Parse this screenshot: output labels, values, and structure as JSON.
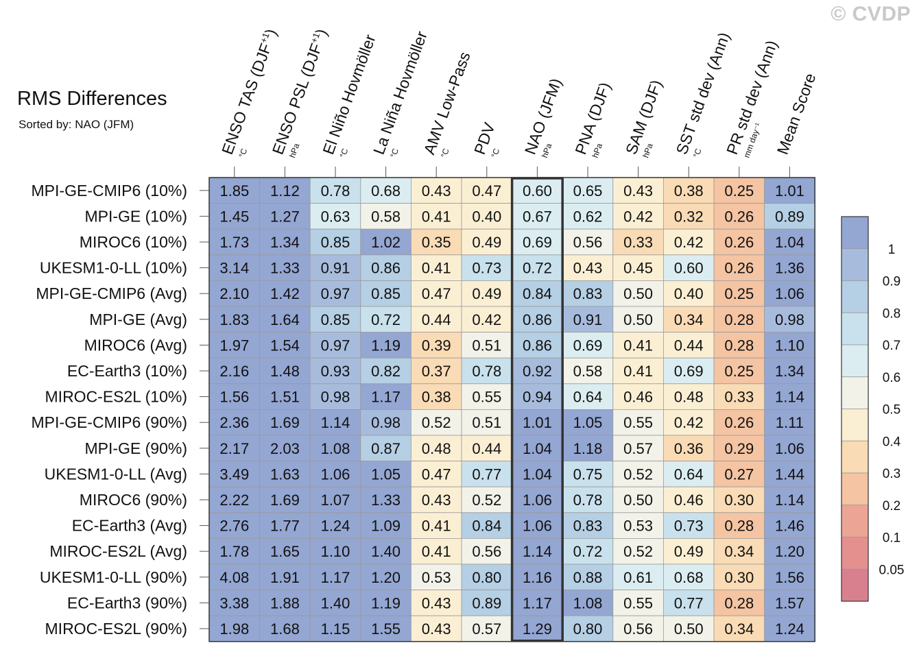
{
  "title": "RMS Differences",
  "subtitle": "Sorted by: NAO (JFM)",
  "watermark": "© CVDP",
  "chart_data": {
    "type": "heatmap",
    "columns": [
      {
        "label": "ENSO TAS (DJF",
        "sup": "+1",
        "tail": ")",
        "unit": "°C"
      },
      {
        "label": "ENSO PSL (DJF",
        "sup": "+1",
        "tail": ")",
        "unit": "hPa"
      },
      {
        "label": "El Niño Hovmöller",
        "sup": "",
        "tail": "",
        "unit": "°C"
      },
      {
        "label": "La Niña Hovmöller",
        "sup": "",
        "tail": "",
        "unit": "°C"
      },
      {
        "label": "AMV Low-Pass",
        "sup": "",
        "tail": "",
        "unit": "°C"
      },
      {
        "label": "PDV",
        "sup": "",
        "tail": "",
        "unit": "°C"
      },
      {
        "label": "NAO (JFM)",
        "sup": "",
        "tail": "",
        "unit": "hPa"
      },
      {
        "label": "PNA (DJF)",
        "sup": "",
        "tail": "",
        "unit": "hPa"
      },
      {
        "label": "SAM (DJF)",
        "sup": "",
        "tail": "",
        "unit": "hPa"
      },
      {
        "label": "SST std dev (Ann)",
        "sup": "",
        "tail": "",
        "unit": "°C"
      },
      {
        "label": "PR std dev (Ann)",
        "sup": "",
        "tail": "",
        "unit": "mm day⁻¹"
      },
      {
        "label": "Mean Score",
        "sup": "",
        "tail": "",
        "unit": ""
      }
    ],
    "rows": [
      "MPI-GE-CMIP6 (10%)",
      "MPI-GE (10%)",
      "MIROC6 (10%)",
      "UKESM1-0-LL (10%)",
      "MPI-GE-CMIP6 (Avg)",
      "MPI-GE (Avg)",
      "MIROC6 (Avg)",
      "EC-Earth3 (10%)",
      "MIROC-ES2L (10%)",
      "MPI-GE-CMIP6 (90%)",
      "MPI-GE (90%)",
      "UKESM1-0-LL (Avg)",
      "MIROC6 (90%)",
      "EC-Earth3 (Avg)",
      "MIROC-ES2L (Avg)",
      "UKESM1-0-LL (90%)",
      "EC-Earth3 (90%)",
      "MIROC-ES2L (90%)"
    ],
    "values": [
      [
        "1.85",
        "1.12",
        "0.78",
        "0.68",
        "0.43",
        "0.47",
        "0.60",
        "0.65",
        "0.43",
        "0.38",
        "0.25",
        "1.01"
      ],
      [
        "1.45",
        "1.27",
        "0.63",
        "0.58",
        "0.41",
        "0.40",
        "0.67",
        "0.62",
        "0.42",
        "0.32",
        "0.26",
        "0.89"
      ],
      [
        "1.73",
        "1.34",
        "0.85",
        "1.02",
        "0.35",
        "0.49",
        "0.69",
        "0.56",
        "0.33",
        "0.42",
        "0.26",
        "1.04"
      ],
      [
        "3.14",
        "1.33",
        "0.91",
        "0.86",
        "0.41",
        "0.73",
        "0.72",
        "0.43",
        "0.45",
        "0.60",
        "0.26",
        "1.36"
      ],
      [
        "2.10",
        "1.42",
        "0.97",
        "0.85",
        "0.47",
        "0.49",
        "0.84",
        "0.83",
        "0.50",
        "0.40",
        "0.25",
        "1.06"
      ],
      [
        "1.83",
        "1.64",
        "0.85",
        "0.72",
        "0.44",
        "0.42",
        "0.86",
        "0.91",
        "0.50",
        "0.34",
        "0.28",
        "0.98"
      ],
      [
        "1.97",
        "1.54",
        "0.97",
        "1.19",
        "0.39",
        "0.51",
        "0.86",
        "0.69",
        "0.41",
        "0.44",
        "0.28",
        "1.10"
      ],
      [
        "2.16",
        "1.48",
        "0.93",
        "0.82",
        "0.37",
        "0.78",
        "0.92",
        "0.58",
        "0.41",
        "0.69",
        "0.25",
        "1.34"
      ],
      [
        "1.56",
        "1.51",
        "0.98",
        "1.17",
        "0.38",
        "0.55",
        "0.94",
        "0.64",
        "0.46",
        "0.48",
        "0.33",
        "1.14"
      ],
      [
        "2.36",
        "1.69",
        "1.14",
        "0.98",
        "0.52",
        "0.51",
        "1.01",
        "1.05",
        "0.55",
        "0.42",
        "0.26",
        "1.11"
      ],
      [
        "2.17",
        "2.03",
        "1.08",
        "0.87",
        "0.48",
        "0.44",
        "1.04",
        "1.18",
        "0.57",
        "0.36",
        "0.29",
        "1.06"
      ],
      [
        "3.49",
        "1.63",
        "1.06",
        "1.05",
        "0.47",
        "0.77",
        "1.04",
        "0.75",
        "0.52",
        "0.64",
        "0.27",
        "1.44"
      ],
      [
        "2.22",
        "1.69",
        "1.07",
        "1.33",
        "0.43",
        "0.52",
        "1.06",
        "0.78",
        "0.50",
        "0.46",
        "0.30",
        "1.14"
      ],
      [
        "2.76",
        "1.77",
        "1.24",
        "1.09",
        "0.41",
        "0.84",
        "1.06",
        "0.83",
        "0.53",
        "0.73",
        "0.28",
        "1.46"
      ],
      [
        "1.78",
        "1.65",
        "1.10",
        "1.40",
        "0.41",
        "0.56",
        "1.14",
        "0.72",
        "0.52",
        "0.49",
        "0.34",
        "1.20"
      ],
      [
        "4.08",
        "1.91",
        "1.17",
        "1.20",
        "0.53",
        "0.80",
        "1.16",
        "0.88",
        "0.61",
        "0.68",
        "0.30",
        "1.56"
      ],
      [
        "3.38",
        "1.88",
        "1.40",
        "1.19",
        "0.43",
        "0.89",
        "1.17",
        "1.08",
        "0.55",
        "0.77",
        "0.28",
        "1.57"
      ],
      [
        "1.98",
        "1.68",
        "1.15",
        "1.55",
        "0.43",
        "0.57",
        "1.29",
        "0.80",
        "0.56",
        "0.50",
        "0.34",
        "1.24"
      ]
    ],
    "highlighted_column": "NAO (JFM)",
    "colorbar": {
      "labels": [
        "1",
        "0.9",
        "0.8",
        "0.7",
        "0.6",
        "0.5",
        "0.4",
        "0.3",
        "0.2",
        "0.1",
        "0.05"
      ],
      "bounds": [
        1,
        0.9,
        0.8,
        0.7,
        0.6,
        0.5,
        0.4,
        0.3,
        0.2,
        0.1,
        0.05
      ],
      "colors": [
        "#94a6d2",
        "#a7bcdd",
        "#b5cfe4",
        "#c9e1ec",
        "#dbedf1",
        "#f2f2e9",
        "#fbefd3",
        "#f9dbb5",
        "#f4c4a3",
        "#eca595",
        "#e4908f",
        "#d9808e"
      ]
    }
  }
}
